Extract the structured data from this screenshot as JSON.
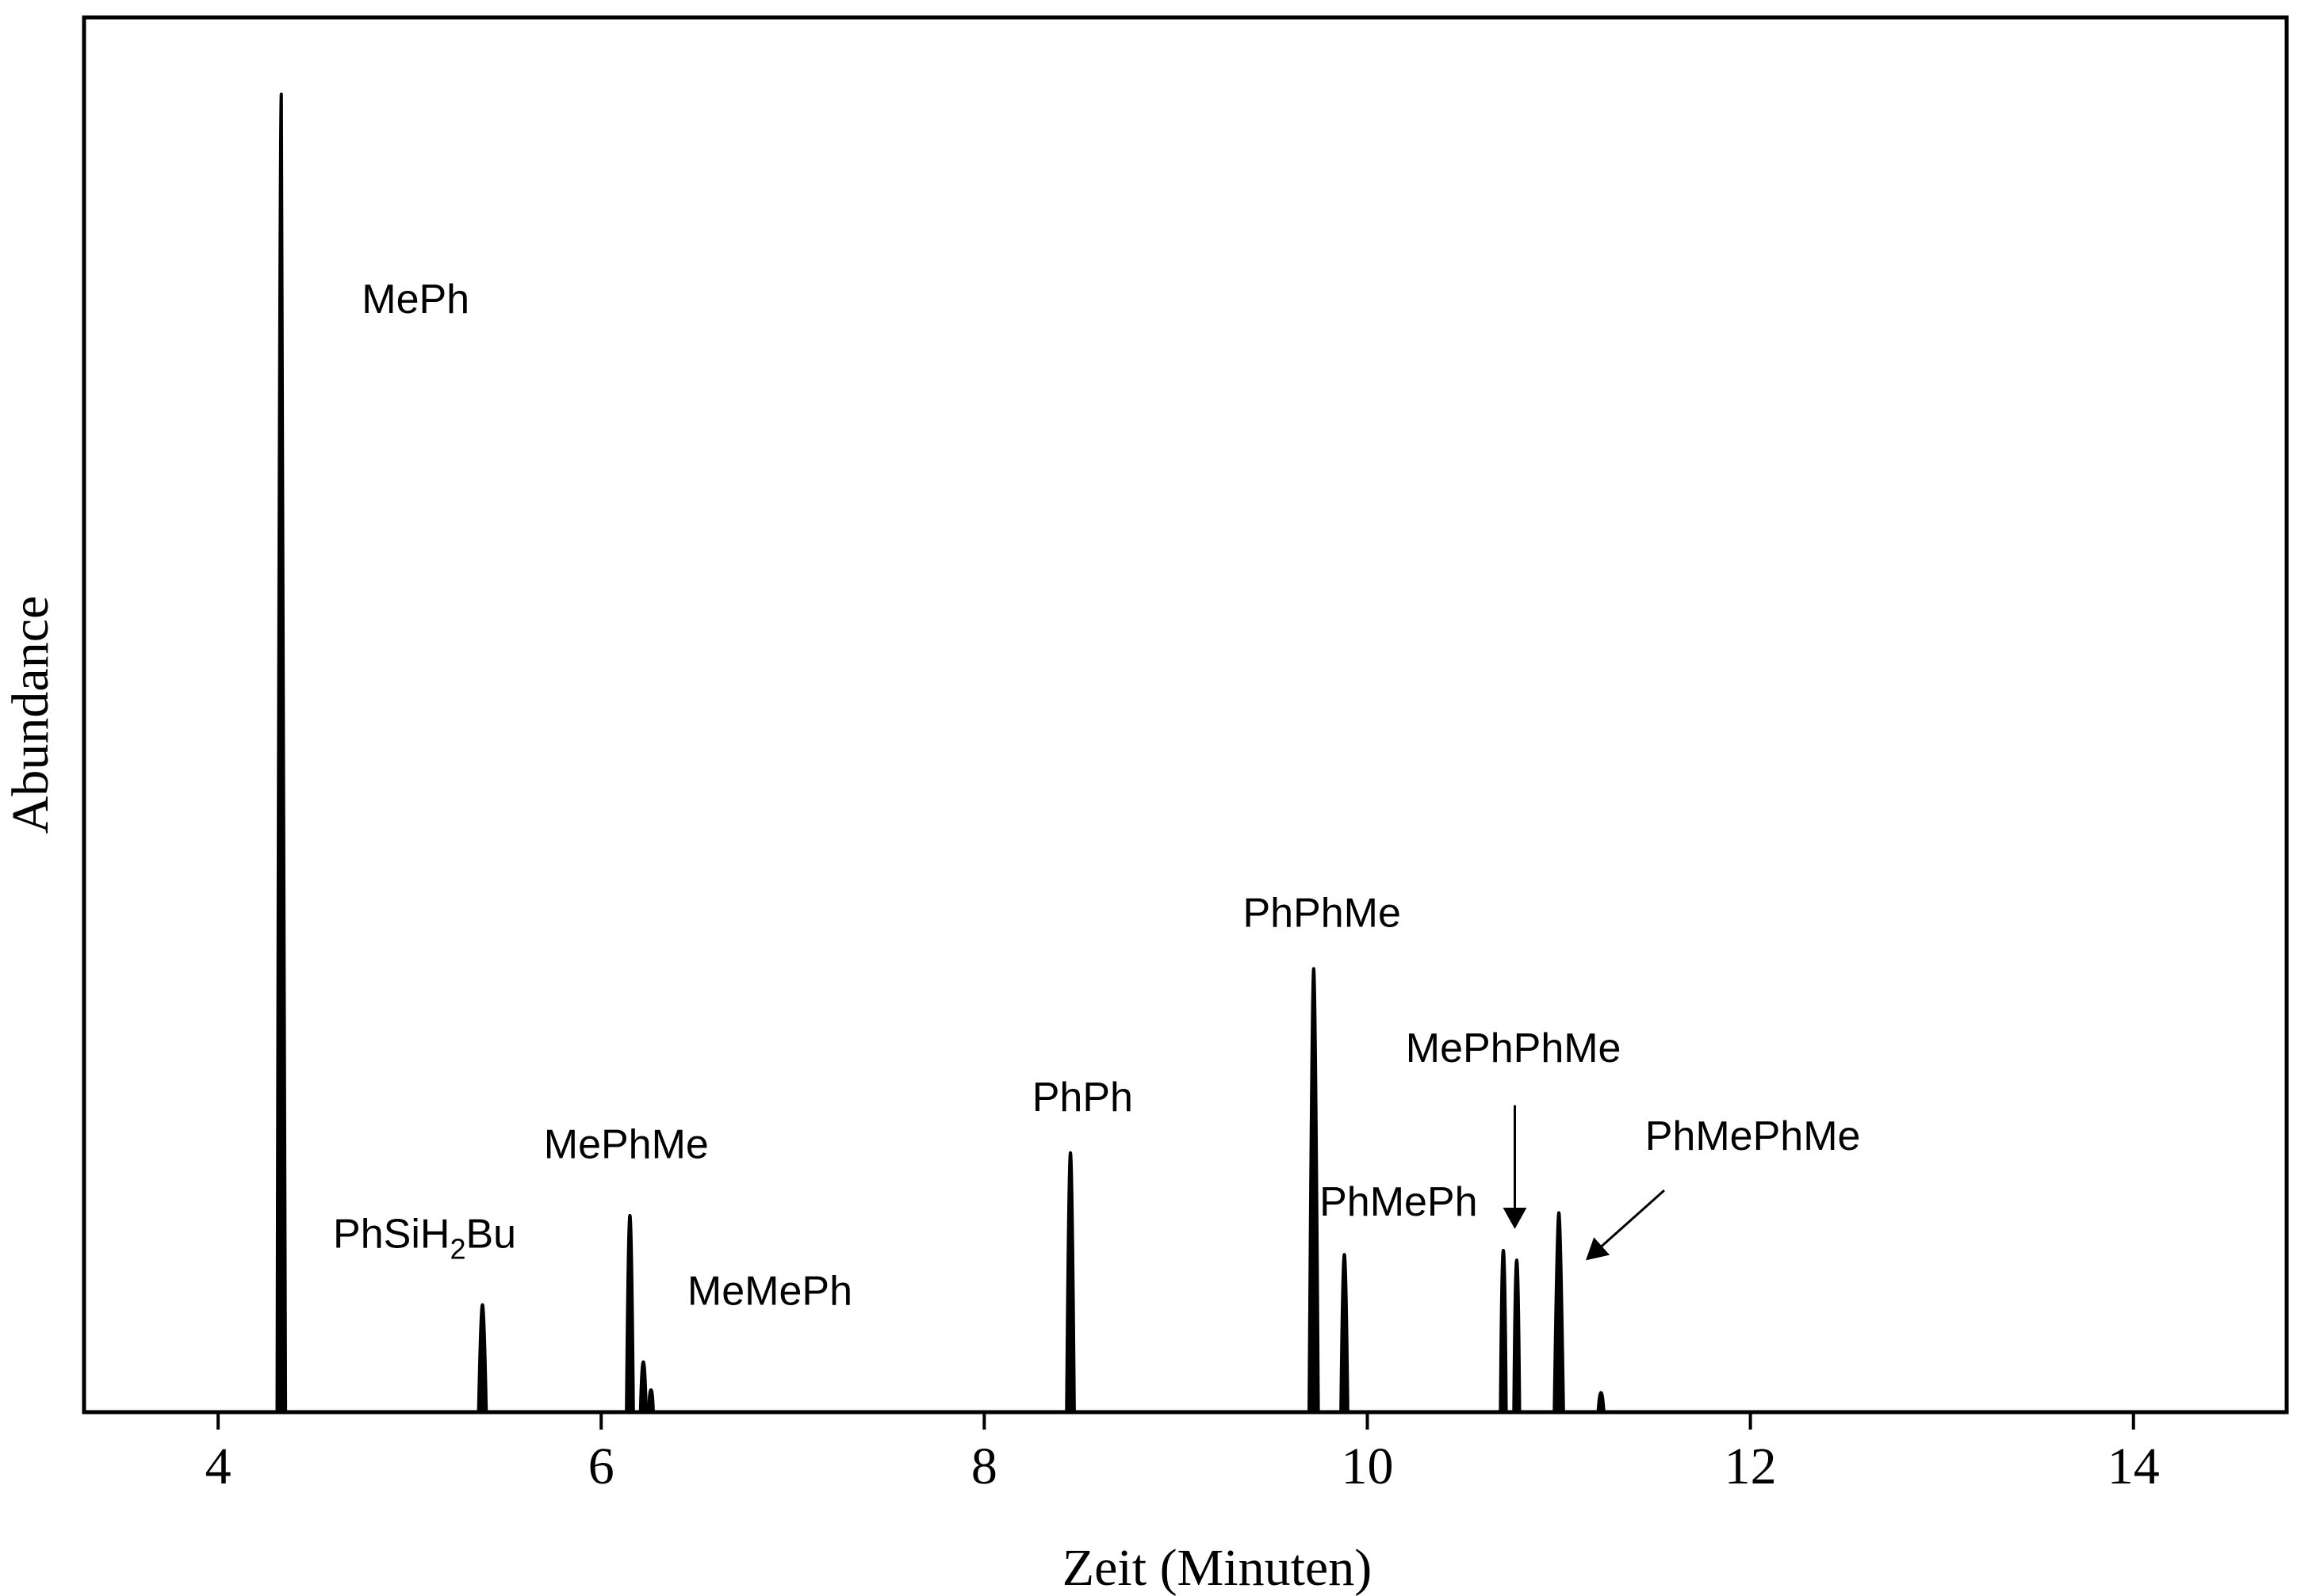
{
  "chart_data": {
    "type": "line",
    "title": "",
    "xlabel": "Zeit (Minuten)",
    "ylabel": "Abundance",
    "xlim": [
      3.3,
      14.8
    ],
    "ylim": [
      0,
      100
    ],
    "xticks": [
      4,
      6,
      8,
      10,
      12,
      14
    ],
    "ytick_labels": "none",
    "grid": false,
    "legend": "none",
    "peaks": [
      {
        "t": 4.33,
        "h": 94.5,
        "w": 0.022
      },
      {
        "t": 5.38,
        "h": 7.7,
        "w": 0.02
      },
      {
        "t": 6.15,
        "h": 14.1,
        "w": 0.018
      },
      {
        "t": 6.22,
        "h": 3.6,
        "w": 0.015
      },
      {
        "t": 6.26,
        "h": 1.6,
        "w": 0.012
      },
      {
        "t": 8.45,
        "h": 18.6,
        "w": 0.02
      },
      {
        "t": 9.72,
        "h": 31.8,
        "w": 0.024
      },
      {
        "t": 9.88,
        "h": 11.3,
        "w": 0.018
      },
      {
        "t": 10.71,
        "h": 11.6,
        "w": 0.015
      },
      {
        "t": 10.78,
        "h": 10.9,
        "w": 0.015
      },
      {
        "t": 11.0,
        "h": 14.3,
        "w": 0.024
      },
      {
        "t": 11.22,
        "h": 1.4,
        "w": 0.015
      }
    ],
    "annotations": [
      {
        "id": "meph",
        "text": "MePh",
        "x": 4.75,
        "y": 78.8
      },
      {
        "id": "phsih2bu",
        "text": "PhSiH",
        "subscript": "2",
        "suffix": "Bu",
        "x": 4.6,
        "y": 11.8
      },
      {
        "id": "mephme",
        "text": "MePhMe",
        "x": 5.7,
        "y": 18.2
      },
      {
        "id": "memeph",
        "text": "MeMePh",
        "x": 6.45,
        "y": 7.7
      },
      {
        "id": "phph",
        "text": "PhPh",
        "x": 8.25,
        "y": 21.6
      },
      {
        "id": "phphme",
        "text": "PhPhMe",
        "x": 9.35,
        "y": 34.8
      },
      {
        "id": "phmeph",
        "text": "PhMePh",
        "x": 9.75,
        "y": 14.1
      },
      {
        "id": "mephphme",
        "text": "MePhPhMe",
        "x": 10.2,
        "y": 25.1,
        "arrow": {
          "from": [
            10.77,
            22.0
          ],
          "to": [
            10.77,
            13.3
          ]
        }
      },
      {
        "id": "phmephme",
        "text": "PhMePhMe",
        "x": 11.45,
        "y": 18.8,
        "arrow": {
          "from": [
            11.55,
            15.9
          ],
          "to": [
            11.15,
            11.0
          ]
        }
      }
    ]
  }
}
